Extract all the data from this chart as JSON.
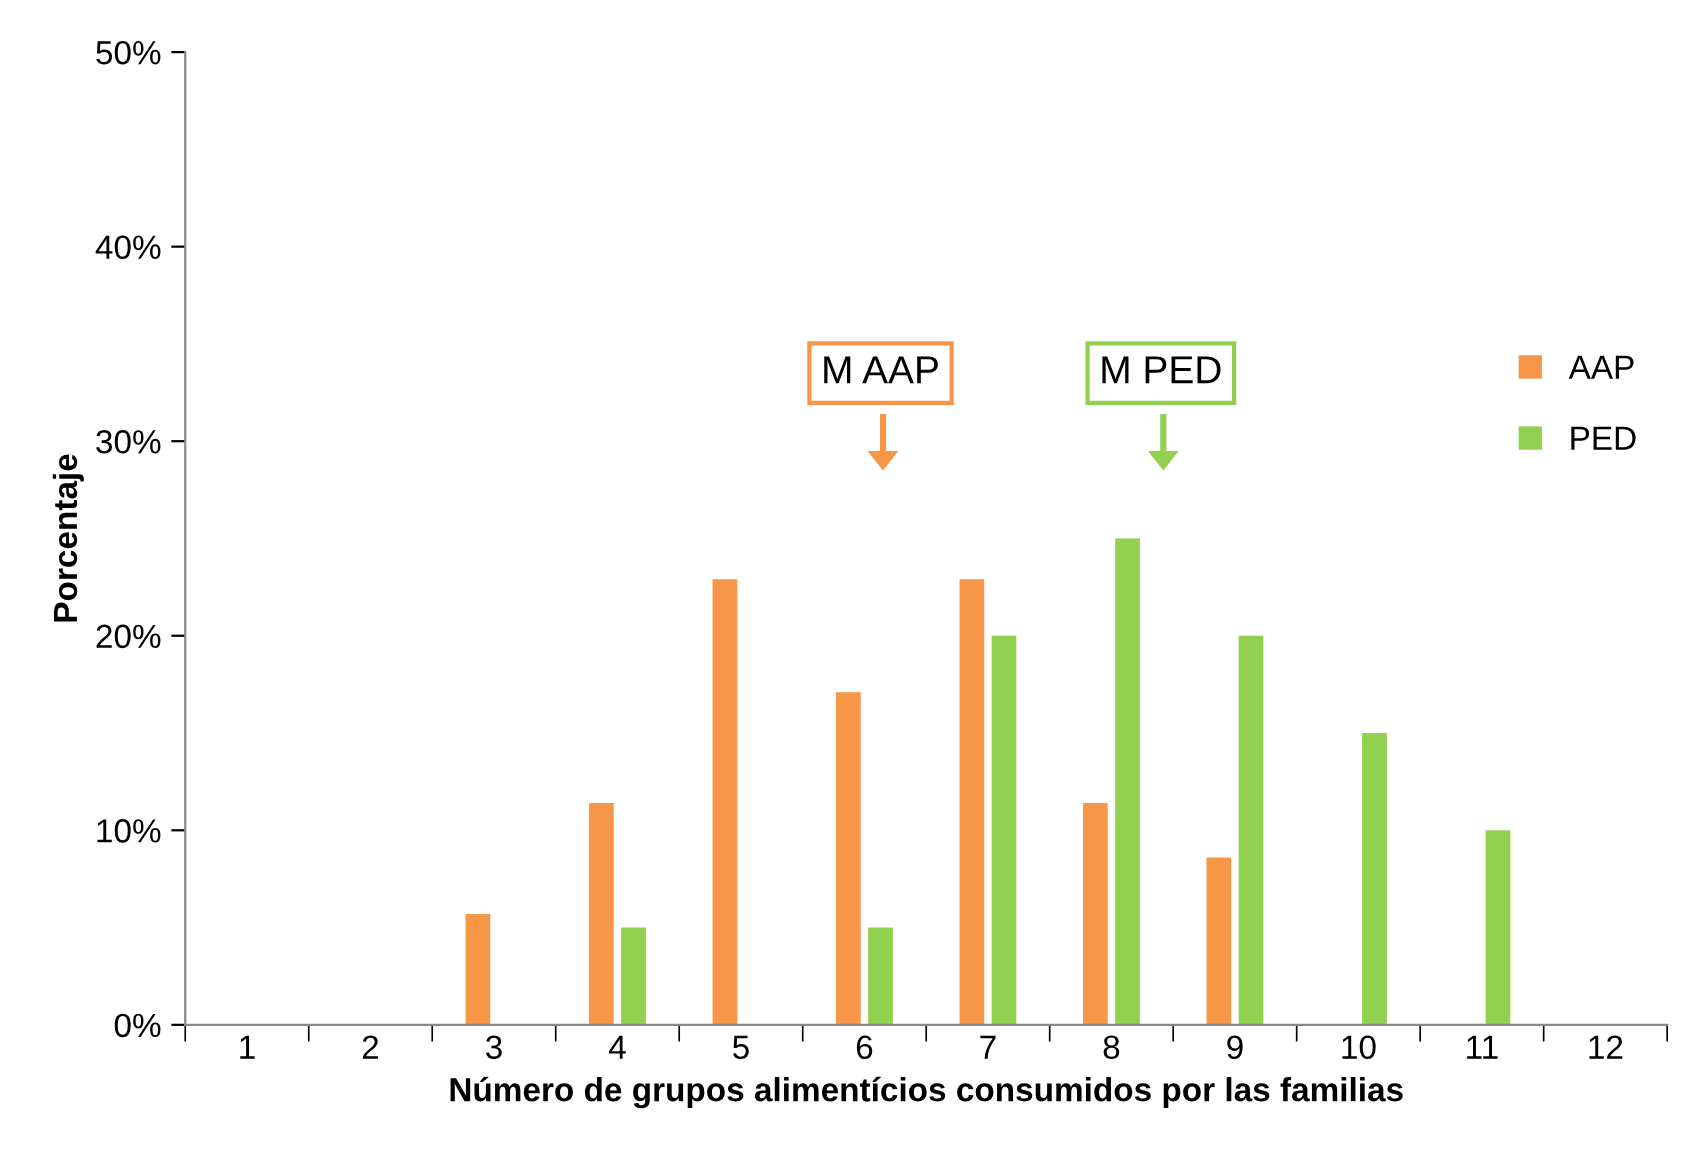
{
  "chart_data": {
    "type": "bar",
    "xlabel": "Número de grupos alimentícios consumidos por las familias",
    "ylabel": "Porcentaje",
    "categories": [
      "1",
      "2",
      "3",
      "4",
      "5",
      "6",
      "7",
      "8",
      "9",
      "10",
      "11",
      "12"
    ],
    "series": [
      {
        "name": "AAP",
        "color": "#f79646",
        "values": [
          0,
          0,
          5.7,
          11.4,
          22.9,
          17.1,
          22.9,
          11.4,
          8.6,
          0,
          0,
          0
        ]
      },
      {
        "name": "PED",
        "color": "#92d050",
        "values": [
          0,
          0,
          0,
          5,
          0,
          5,
          20,
          25,
          20,
          15,
          10,
          0
        ]
      }
    ],
    "ylim": [
      0,
      50
    ],
    "yticks": [
      {
        "value": 0,
        "label": "0%"
      },
      {
        "value": 10,
        "label": "10%"
      },
      {
        "value": 20,
        "label": "20%"
      },
      {
        "value": 30,
        "label": "30%"
      },
      {
        "value": 40,
        "label": "40%"
      },
      {
        "value": 50,
        "label": "50%"
      }
    ],
    "annotations": [
      "M AAP",
      "M PED"
    ],
    "grid": false,
    "legend": "right"
  }
}
